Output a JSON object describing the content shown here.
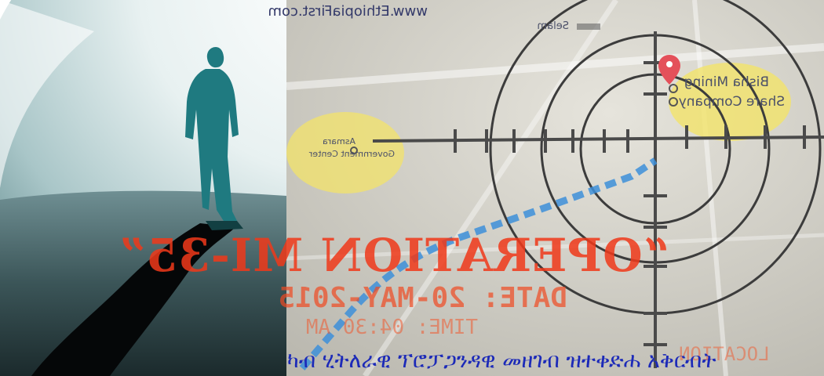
{
  "image": {
    "left_panel": {
      "description_icon": "silhouette-figure-icon"
    },
    "right_panel": {
      "watermark": "www.EthiopiaFirst.com",
      "map_labels": {
        "top_label": "Selam",
        "right_label_line1": "Bisha Mining",
        "right_label_line2": "Share Company",
        "left_label_line1": "Asmara",
        "left_label_line2": "Government Center"
      },
      "operation_title": "“OPERATION MI-35”",
      "operation_date": "DATE: 20-MAY-2015",
      "operation_time": "TIME: 04:30 AM",
      "operation_location": "LOCATION"
    },
    "caption": "ካብ ሂትለራዊ  ፕሮፓጋንዳዊ መዘገብ ዝተቀድሐ አቅርብት"
  },
  "colors": {
    "caption": "#1c2ab8",
    "operation_text": "#f0391a",
    "figure": "#1f7a80",
    "highlight": "#f3e36a",
    "path": "#3d8fd9"
  }
}
